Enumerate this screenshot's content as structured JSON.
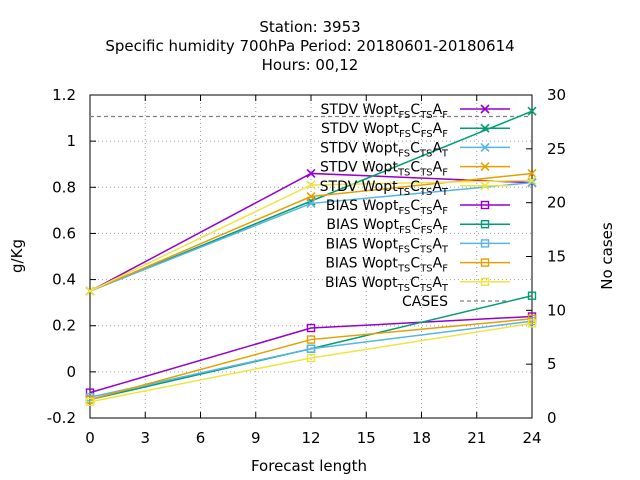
{
  "chart_data": {
    "type": "line",
    "title": [
      "Station:     3953",
      "Specific humidity 700hPa   Period: 20180601-20180614",
      "Hours:  00,12"
    ],
    "xlabel": "Forecast length",
    "ylabel": "g/Kg",
    "y2label": "No cases",
    "x": [
      0,
      12,
      24
    ],
    "xlim": [
      0,
      24
    ],
    "ylim": [
      -0.2,
      1.2
    ],
    "y2lim": [
      0,
      30
    ],
    "xticks": [
      "0",
      "3",
      "6",
      "9",
      "12",
      "15",
      "18",
      "21",
      "24"
    ],
    "yticks": [
      "-0.2",
      "0",
      "0.2",
      "0.4",
      "0.6",
      "0.8",
      "1",
      "1.2"
    ],
    "y2ticks": [
      "0",
      "5",
      "10",
      "15",
      "20",
      "25",
      "30"
    ],
    "grid": true,
    "legend_position": "top-right",
    "series": [
      {
        "name": "STDV Wopt_FS C_TS A_F",
        "base": "STDV Wopt",
        "parts": [
          [
            "FS",
            "C"
          ],
          [
            "TS",
            "A"
          ],
          [
            "F",
            ""
          ]
        ],
        "color": "#9400d3",
        "marker": "x",
        "values": [
          0.35,
          0.86,
          0.82
        ]
      },
      {
        "name": "STDV Wopt_FS C_FS A_F",
        "base": "STDV Wopt",
        "parts": [
          [
            "FS",
            "C"
          ],
          [
            "FS",
            "A"
          ],
          [
            "F",
            ""
          ]
        ],
        "color": "#009e73",
        "marker": "x",
        "values": [
          0.35,
          0.74,
          1.13
        ]
      },
      {
        "name": "STDV Wopt_FS C_TS A_T",
        "base": "STDV Wopt",
        "parts": [
          [
            "FS",
            "C"
          ],
          [
            "TS",
            "A"
          ],
          [
            "T",
            ""
          ]
        ],
        "color": "#56b4e9",
        "marker": "x",
        "values": [
          0.35,
          0.73,
          0.82
        ]
      },
      {
        "name": "STDV Wopt_TS C_TS A_F",
        "base": "STDV Wopt",
        "parts": [
          [
            "TS",
            "C"
          ],
          [
            "TS",
            "A"
          ],
          [
            "F",
            ""
          ]
        ],
        "color": "#e69f00",
        "marker": "x",
        "values": [
          0.35,
          0.76,
          0.86
        ]
      },
      {
        "name": "STDV Wopt_TS C_TS A_T",
        "base": "STDV Wopt",
        "parts": [
          [
            "TS",
            "C"
          ],
          [
            "TS",
            "A"
          ],
          [
            "T",
            ""
          ]
        ],
        "color": "#f0e442",
        "marker": "x",
        "values": [
          0.35,
          0.81,
          0.83
        ]
      },
      {
        "name": "BIAS Wopt_FS C_TS A_F",
        "base": "BIAS Wopt",
        "parts": [
          [
            "FS",
            "C"
          ],
          [
            "TS",
            "A"
          ],
          [
            "F",
            ""
          ]
        ],
        "color": "#9400d3",
        "marker": "square",
        "values": [
          -0.09,
          0.19,
          0.24
        ]
      },
      {
        "name": "BIAS Wopt_FS C_FS A_F",
        "base": "BIAS Wopt",
        "parts": [
          [
            "FS",
            "C"
          ],
          [
            "FS",
            "A"
          ],
          [
            "F",
            ""
          ]
        ],
        "color": "#009e73",
        "marker": "square",
        "values": [
          -0.12,
          0.1,
          0.33
        ]
      },
      {
        "name": "BIAS Wopt_FS C_TS A_T",
        "base": "BIAS Wopt",
        "parts": [
          [
            "FS",
            "C"
          ],
          [
            "TS",
            "A"
          ],
          [
            "T",
            ""
          ]
        ],
        "color": "#56b4e9",
        "marker": "square",
        "values": [
          -0.11,
          0.1,
          0.22
        ]
      },
      {
        "name": "BIAS Wopt_TS C_TS A_F",
        "base": "BIAS Wopt",
        "parts": [
          [
            "TS",
            "C"
          ],
          [
            "TS",
            "A"
          ],
          [
            "F",
            ""
          ]
        ],
        "color": "#e69f00",
        "marker": "square",
        "values": [
          -0.12,
          0.14,
          0.23
        ]
      },
      {
        "name": "BIAS Wopt_TS C_TS A_T",
        "base": "BIAS Wopt",
        "parts": [
          [
            "TS",
            "C"
          ],
          [
            "TS",
            "A"
          ],
          [
            "T",
            ""
          ]
        ],
        "color": "#f0e442",
        "marker": "square",
        "values": [
          -0.13,
          0.06,
          0.21
        ]
      }
    ],
    "cases": {
      "name": "CASES",
      "color": "#808080",
      "axis": "y2",
      "values": [
        28,
        28,
        28
      ]
    }
  }
}
